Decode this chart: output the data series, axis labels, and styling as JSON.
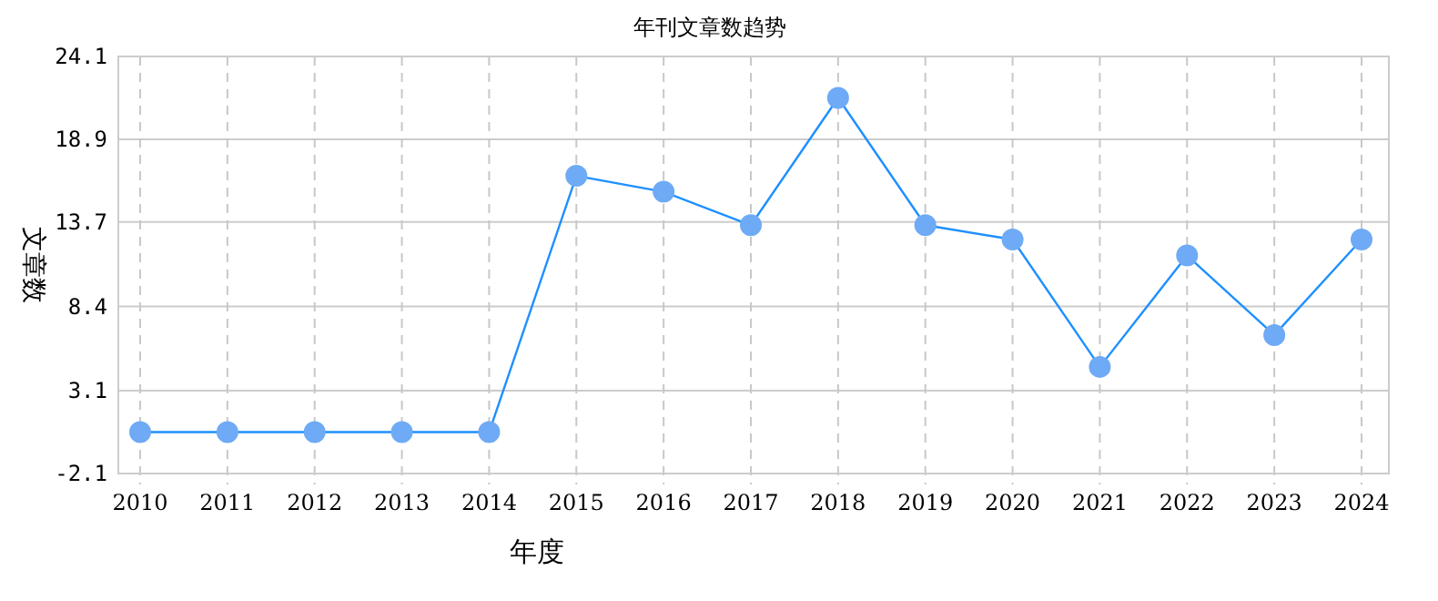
{
  "chart_data": {
    "type": "line",
    "title": "年刊文章数趋势",
    "xlabel": "年度",
    "ylabel": "文章数",
    "categories": [
      "2010",
      "2011",
      "2012",
      "2013",
      "2014",
      "2015",
      "2016",
      "2017",
      "2018",
      "2019",
      "2020",
      "2021",
      "2022",
      "2023",
      "2024"
    ],
    "series": [
      {
        "color": "#1e90ff",
        "values": [
          0.5,
          0.5,
          0.5,
          0.5,
          0.5,
          16.6,
          15.6,
          13.5,
          21.5,
          13.5,
          12.6,
          4.6,
          11.6,
          6.6,
          12.6
        ]
      }
    ],
    "ylim": [
      -2.1,
      24.1
    ],
    "yticks": [
      -2.1,
      3.1,
      8.4,
      13.7,
      18.9,
      24.1
    ],
    "grid": true,
    "marker": "circle",
    "line_style": "solid"
  }
}
